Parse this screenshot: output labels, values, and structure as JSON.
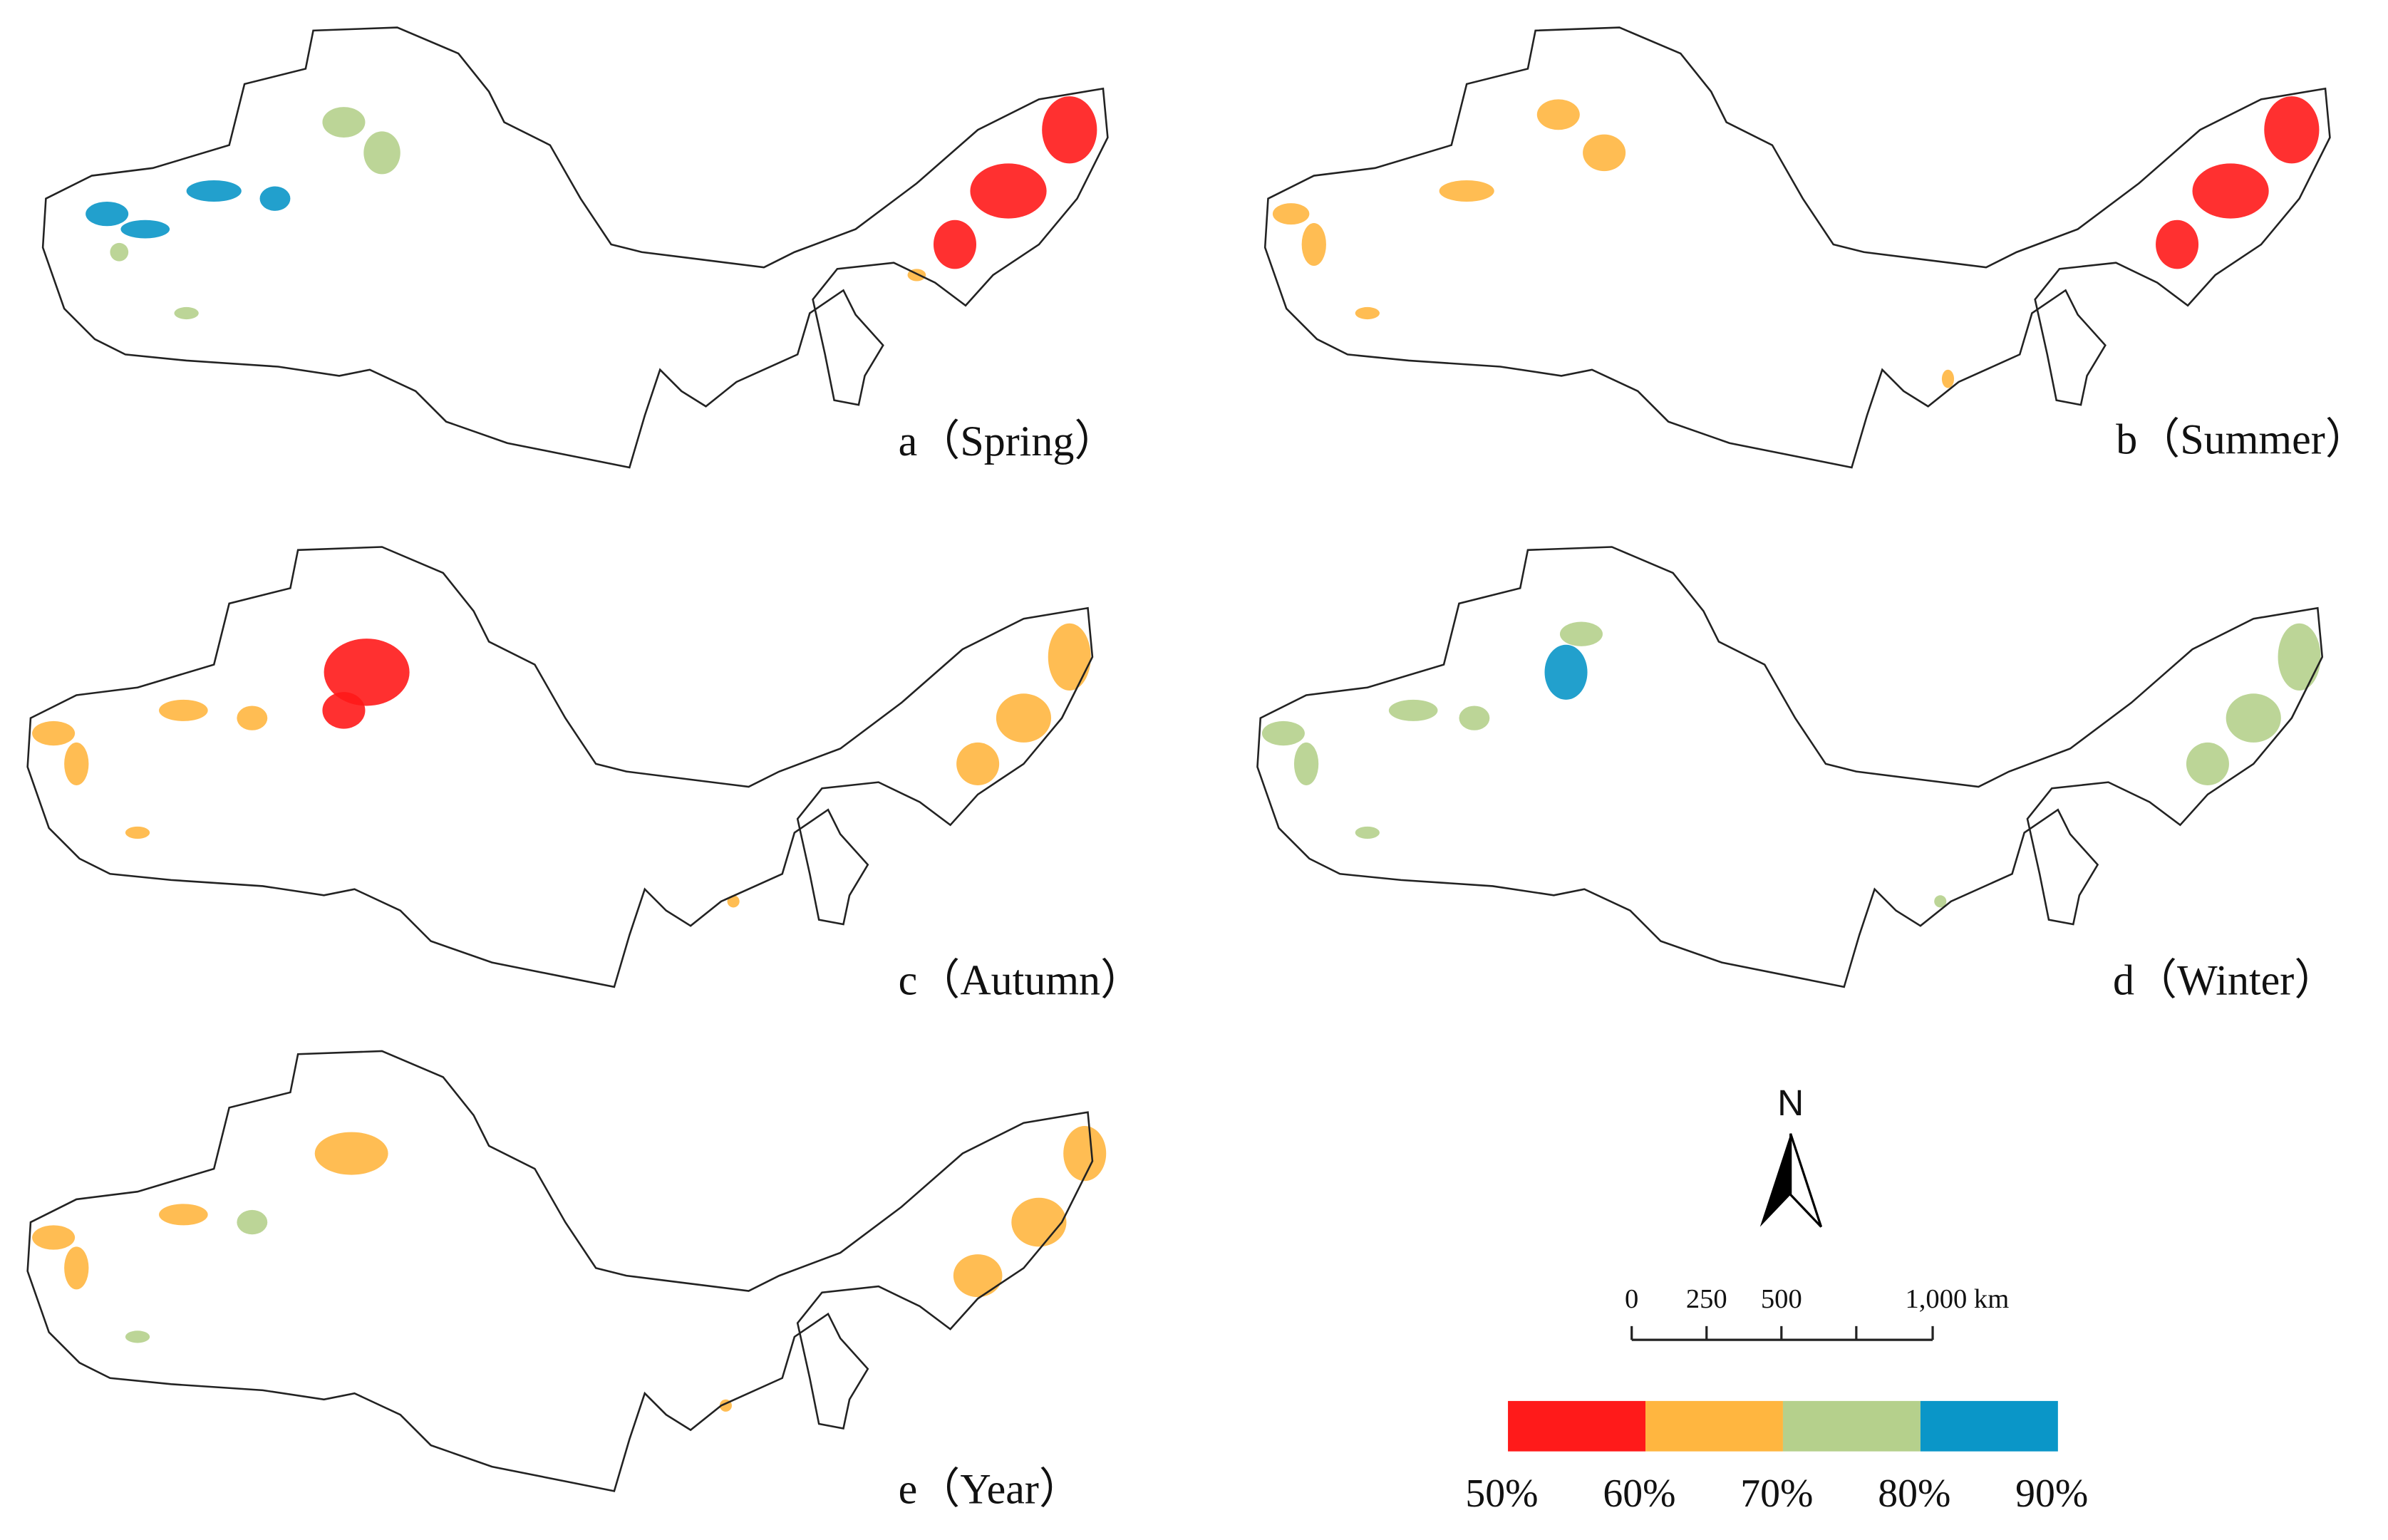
{
  "panels": [
    {
      "label": "a（Spring）"
    },
    {
      "label": "b（Summer）"
    },
    {
      "label": "c（Autumn）"
    },
    {
      "label": "d（Winter）"
    },
    {
      "label": "e（Year）"
    }
  ],
  "north": "N",
  "scale_bar": {
    "labels": [
      "0",
      "250",
      "500",
      "1,000 km"
    ]
  },
  "legend": {
    "labels": [
      "50%",
      "60%",
      "70%",
      "80%",
      "90%"
    ],
    "colors": [
      "#ff1a1a",
      "#ffb640",
      "#b5d08c",
      "#0a96c8"
    ]
  }
}
